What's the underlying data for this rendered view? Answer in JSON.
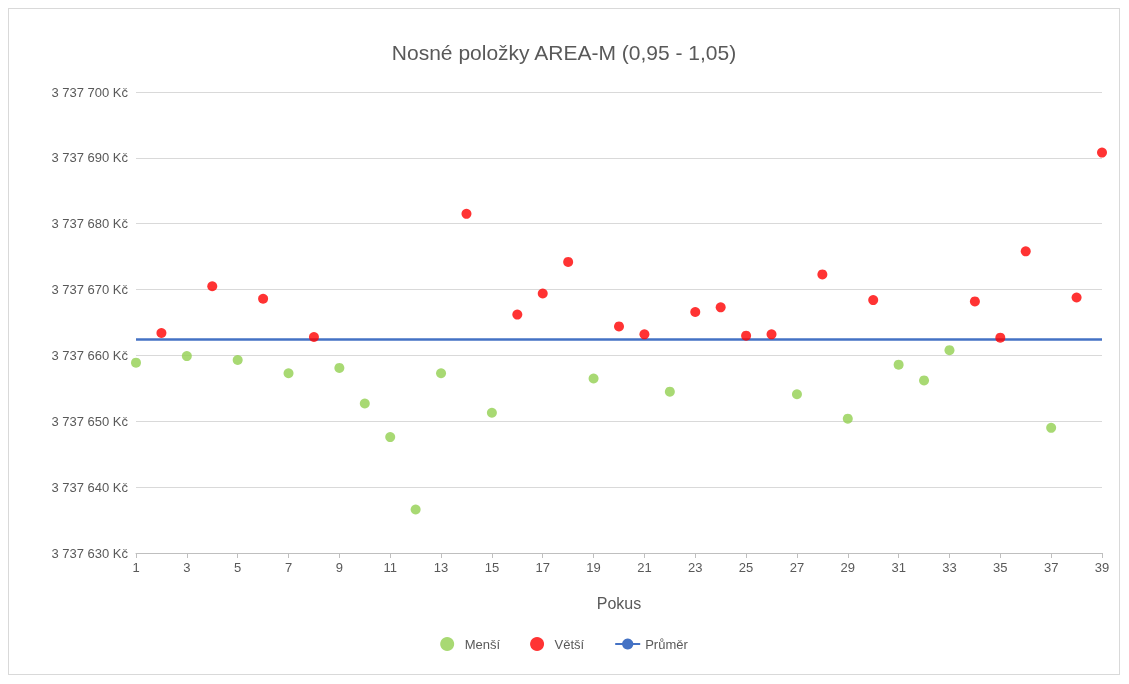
{
  "chart_data": {
    "type": "scatter",
    "title": "Nosné položky AREA-M (0,95 - 1,05)",
    "xlabel": "Pokus",
    "xlim": [
      1,
      39
    ],
    "xticks": [
      1,
      3,
      5,
      7,
      9,
      11,
      13,
      15,
      17,
      19,
      21,
      23,
      25,
      27,
      29,
      31,
      33,
      35,
      37,
      39
    ],
    "ylim": [
      3737630,
      3737700
    ],
    "yticks": [
      {
        "value": 3737630,
        "label": "3 737 630 Kč"
      },
      {
        "value": 3737640,
        "label": "3 737 640 Kč"
      },
      {
        "value": 3737650,
        "label": "3 737 650 Kč"
      },
      {
        "value": 3737660,
        "label": "3 737 660 Kč"
      },
      {
        "value": 3737670,
        "label": "3 737 670 Kč"
      },
      {
        "value": 3737680,
        "label": "3 737 680 Kč"
      },
      {
        "value": 3737690,
        "label": "3 737 690 Kč"
      },
      {
        "value": 3737700,
        "label": "3 737 700 Kč"
      }
    ],
    "grid": "y",
    "legend": "bottom",
    "marker": "circle",
    "series": [
      {
        "name": "Menší",
        "color": "#92d050",
        "x": [
          1,
          3,
          5,
          7,
          9,
          10,
          11,
          12,
          13,
          15,
          19,
          22,
          27,
          29,
          31,
          32,
          33,
          37
        ],
        "values": [
          3737658.9,
          3737659.9,
          3737659.3,
          3737657.3,
          3737658.1,
          3737652.7,
          3737647.6,
          3737636.6,
          3737657.3,
          3737651.3,
          3737656.5,
          3737654.5,
          3737654.1,
          3737650.4,
          3737658.6,
          3737656.2,
          3737660.8,
          3737649.0
        ]
      },
      {
        "name": "Větší",
        "color": "#ff0000",
        "x": [
          2,
          4,
          6,
          8,
          14,
          16,
          17,
          18,
          20,
          21,
          23,
          24,
          25,
          26,
          28,
          30,
          34,
          35,
          36,
          38,
          39
        ],
        "values": [
          3737663.4,
          3737670.5,
          3737668.6,
          3737662.8,
          3737681.5,
          3737666.2,
          3737669.4,
          3737674.2,
          3737664.4,
          3737663.2,
          3737666.6,
          3737667.3,
          3737663.0,
          3737663.2,
          3737672.3,
          3737668.4,
          3737668.2,
          3737662.7,
          3737675.8,
          3737668.8,
          3737690.8
        ]
      },
      {
        "name": "Průměr",
        "type": "line",
        "color": "#4472c4",
        "line_style": "solid",
        "marker": "none",
        "x": [
          1,
          39
        ],
        "values": [
          3737662.4,
          3737662.4
        ]
      }
    ]
  }
}
